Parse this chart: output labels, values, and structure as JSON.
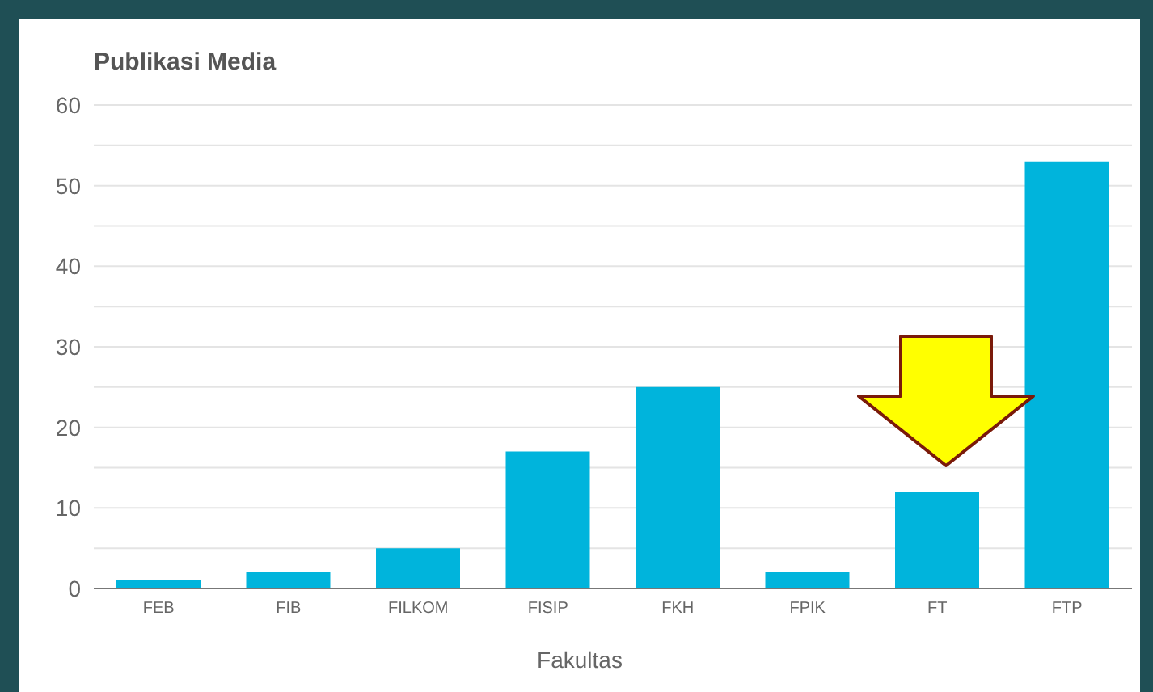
{
  "chart_data": {
    "type": "bar",
    "title": "Publikasi Media",
    "xlabel": "Fakultas",
    "categories": [
      "FEB",
      "FIB",
      "FILKOM",
      "FISIP",
      "FKH",
      "FPIK",
      "FT",
      "FTP"
    ],
    "values": [
      1,
      2,
      5,
      17,
      25,
      2,
      12,
      53
    ],
    "color": "#00b4dc",
    "ylim": [
      0,
      60
    ],
    "yticks": [
      0,
      {
        "value": 5,
        "label": null
      },
      10,
      {
        "value": 15,
        "label": null
      },
      20,
      {
        "value": 25,
        "label": null
      },
      30,
      {
        "value": 35,
        "label": null
      },
      40,
      {
        "value": 45,
        "label": null
      },
      50,
      {
        "value": 55,
        "label": null
      },
      60
    ],
    "grid": "y",
    "legend": false
  }
}
